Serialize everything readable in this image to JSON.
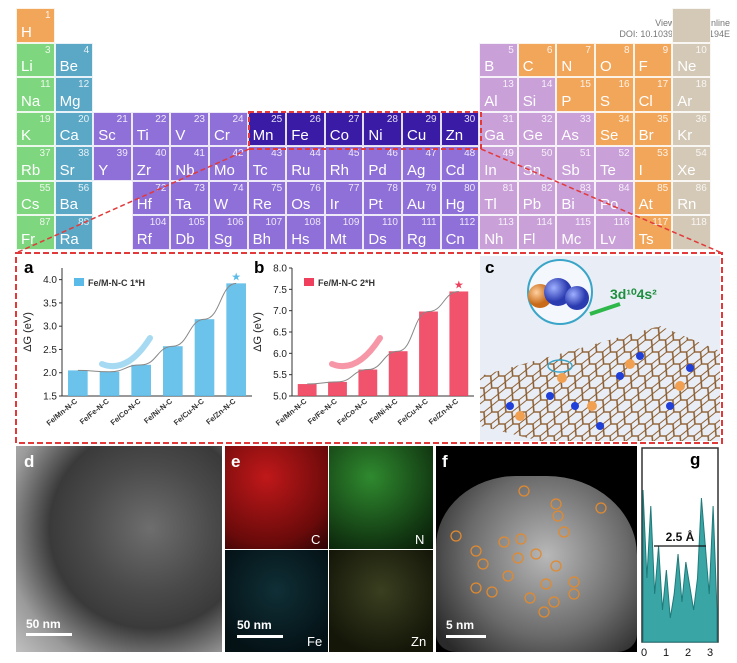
{
  "doi_block": {
    "line1": "View Article Online",
    "line2": "DOI: 10.1039/D1EE03194E"
  },
  "colors": {
    "alkali": "#7ed67e",
    "alkaline_earth": "#5aa7c6",
    "transition": "#8f6fd8",
    "transition_highlight": "#3a1ba6",
    "post_transition": "#c9a0d8",
    "metalloid_nonmetal": "#f2a65a",
    "noble": "#d4c8b6",
    "dashed": "#e23a3a",
    "chart_a": "#5bbbe8",
    "chart_b": "#ef3f5c",
    "teal": "#3aa5a5"
  },
  "periodic_table": {
    "elements": [
      {
        "n": "1",
        "s": "H",
        "r": 0,
        "c": 0,
        "g": "metalloid_nonmetal"
      },
      {
        "n": "",
        "s": "",
        "r": 0,
        "c": 17,
        "g": "noble"
      },
      {
        "n": "3",
        "s": "Li",
        "r": 1,
        "c": 0,
        "g": "alkali"
      },
      {
        "n": "4",
        "s": "Be",
        "r": 1,
        "c": 1,
        "g": "alkaline_earth"
      },
      {
        "n": "5",
        "s": "B",
        "r": 1,
        "c": 12,
        "g": "post_transition"
      },
      {
        "n": "6",
        "s": "C",
        "r": 1,
        "c": 13,
        "g": "metalloid_nonmetal"
      },
      {
        "n": "7",
        "s": "N",
        "r": 1,
        "c": 14,
        "g": "metalloid_nonmetal"
      },
      {
        "n": "8",
        "s": "O",
        "r": 1,
        "c": 15,
        "g": "metalloid_nonmetal"
      },
      {
        "n": "9",
        "s": "F",
        "r": 1,
        "c": 16,
        "g": "metalloid_nonmetal"
      },
      {
        "n": "10",
        "s": "Ne",
        "r": 1,
        "c": 17,
        "g": "noble"
      },
      {
        "n": "11",
        "s": "Na",
        "r": 2,
        "c": 0,
        "g": "alkali"
      },
      {
        "n": "12",
        "s": "Mg",
        "r": 2,
        "c": 1,
        "g": "alkaline_earth"
      },
      {
        "n": "13",
        "s": "Al",
        "r": 2,
        "c": 12,
        "g": "post_transition"
      },
      {
        "n": "14",
        "s": "Si",
        "r": 2,
        "c": 13,
        "g": "post_transition"
      },
      {
        "n": "15",
        "s": "P",
        "r": 2,
        "c": 14,
        "g": "metalloid_nonmetal"
      },
      {
        "n": "16",
        "s": "S",
        "r": 2,
        "c": 15,
        "g": "metalloid_nonmetal"
      },
      {
        "n": "17",
        "s": "Cl",
        "r": 2,
        "c": 16,
        "g": "metalloid_nonmetal"
      },
      {
        "n": "18",
        "s": "Ar",
        "r": 2,
        "c": 17,
        "g": "noble"
      },
      {
        "n": "19",
        "s": "K",
        "r": 3,
        "c": 0,
        "g": "alkali"
      },
      {
        "n": "20",
        "s": "Ca",
        "r": 3,
        "c": 1,
        "g": "alkaline_earth"
      },
      {
        "n": "21",
        "s": "Sc",
        "r": 3,
        "c": 2,
        "g": "transition"
      },
      {
        "n": "22",
        "s": "Ti",
        "r": 3,
        "c": 3,
        "g": "transition"
      },
      {
        "n": "23",
        "s": "V",
        "r": 3,
        "c": 4,
        "g": "transition"
      },
      {
        "n": "24",
        "s": "Cr",
        "r": 3,
        "c": 5,
        "g": "transition"
      },
      {
        "n": "25",
        "s": "Mn",
        "r": 3,
        "c": 6,
        "g": "transition_highlight"
      },
      {
        "n": "26",
        "s": "Fe",
        "r": 3,
        "c": 7,
        "g": "transition_highlight"
      },
      {
        "n": "27",
        "s": "Co",
        "r": 3,
        "c": 8,
        "g": "transition_highlight"
      },
      {
        "n": "28",
        "s": "Ni",
        "r": 3,
        "c": 9,
        "g": "transition_highlight"
      },
      {
        "n": "29",
        "s": "Cu",
        "r": 3,
        "c": 10,
        "g": "transition_highlight"
      },
      {
        "n": "30",
        "s": "Zn",
        "r": 3,
        "c": 11,
        "g": "transition_highlight"
      },
      {
        "n": "31",
        "s": "Ga",
        "r": 3,
        "c": 12,
        "g": "post_transition"
      },
      {
        "n": "32",
        "s": "Ge",
        "r": 3,
        "c": 13,
        "g": "post_transition"
      },
      {
        "n": "33",
        "s": "As",
        "r": 3,
        "c": 14,
        "g": "post_transition"
      },
      {
        "n": "34",
        "s": "Se",
        "r": 3,
        "c": 15,
        "g": "metalloid_nonmetal"
      },
      {
        "n": "35",
        "s": "Br",
        "r": 3,
        "c": 16,
        "g": "metalloid_nonmetal"
      },
      {
        "n": "36",
        "s": "Kr",
        "r": 3,
        "c": 17,
        "g": "noble"
      },
      {
        "n": "37",
        "s": "Rb",
        "r": 4,
        "c": 0,
        "g": "alkali"
      },
      {
        "n": "38",
        "s": "Sr",
        "r": 4,
        "c": 1,
        "g": "alkaline_earth"
      },
      {
        "n": "39",
        "s": "Y",
        "r": 4,
        "c": 2,
        "g": "transition"
      },
      {
        "n": "40",
        "s": "Zr",
        "r": 4,
        "c": 3,
        "g": "transition"
      },
      {
        "n": "41",
        "s": "Nb",
        "r": 4,
        "c": 4,
        "g": "transition"
      },
      {
        "n": "42",
        "s": "Mo",
        "r": 4,
        "c": 5,
        "g": "transition"
      },
      {
        "n": "43",
        "s": "Tc",
        "r": 4,
        "c": 6,
        "g": "transition"
      },
      {
        "n": "44",
        "s": "Ru",
        "r": 4,
        "c": 7,
        "g": "transition"
      },
      {
        "n": "45",
        "s": "Rh",
        "r": 4,
        "c": 8,
        "g": "transition"
      },
      {
        "n": "46",
        "s": "Pd",
        "r": 4,
        "c": 9,
        "g": "transition"
      },
      {
        "n": "47",
        "s": "Ag",
        "r": 4,
        "c": 10,
        "g": "transition"
      },
      {
        "n": "48",
        "s": "Cd",
        "r": 4,
        "c": 11,
        "g": "transition"
      },
      {
        "n": "49",
        "s": "In",
        "r": 4,
        "c": 12,
        "g": "post_transition"
      },
      {
        "n": "50",
        "s": "Sn",
        "r": 4,
        "c": 13,
        "g": "post_transition"
      },
      {
        "n": "51",
        "s": "Sb",
        "r": 4,
        "c": 14,
        "g": "post_transition"
      },
      {
        "n": "52",
        "s": "Te",
        "r": 4,
        "c": 15,
        "g": "post_transition"
      },
      {
        "n": "53",
        "s": "I",
        "r": 4,
        "c": 16,
        "g": "metalloid_nonmetal"
      },
      {
        "n": "54",
        "s": "Xe",
        "r": 4,
        "c": 17,
        "g": "noble"
      },
      {
        "n": "55",
        "s": "Cs",
        "r": 5,
        "c": 0,
        "g": "alkali"
      },
      {
        "n": "56",
        "s": "Ba",
        "r": 5,
        "c": 1,
        "g": "alkaline_earth"
      },
      {
        "n": "72",
        "s": "Hf",
        "r": 5,
        "c": 3,
        "g": "transition"
      },
      {
        "n": "73",
        "s": "Ta",
        "r": 5,
        "c": 4,
        "g": "transition"
      },
      {
        "n": "74",
        "s": "W",
        "r": 5,
        "c": 5,
        "g": "transition"
      },
      {
        "n": "75",
        "s": "Re",
        "r": 5,
        "c": 6,
        "g": "transition"
      },
      {
        "n": "76",
        "s": "Os",
        "r": 5,
        "c": 7,
        "g": "transition"
      },
      {
        "n": "77",
        "s": "Ir",
        "r": 5,
        "c": 8,
        "g": "transition"
      },
      {
        "n": "78",
        "s": "Pt",
        "r": 5,
        "c": 9,
        "g": "transition"
      },
      {
        "n": "79",
        "s": "Au",
        "r": 5,
        "c": 10,
        "g": "transition"
      },
      {
        "n": "80",
        "s": "Hg",
        "r": 5,
        "c": 11,
        "g": "transition"
      },
      {
        "n": "81",
        "s": "Tl",
        "r": 5,
        "c": 12,
        "g": "post_transition"
      },
      {
        "n": "82",
        "s": "Pb",
        "r": 5,
        "c": 13,
        "g": "post_transition"
      },
      {
        "n": "83",
        "s": "Bi",
        "r": 5,
        "c": 14,
        "g": "post_transition"
      },
      {
        "n": "84",
        "s": "Po",
        "r": 5,
        "c": 15,
        "g": "post_transition"
      },
      {
        "n": "85",
        "s": "At",
        "r": 5,
        "c": 16,
        "g": "metalloid_nonmetal"
      },
      {
        "n": "86",
        "s": "Rn",
        "r": 5,
        "c": 17,
        "g": "noble"
      },
      {
        "n": "87",
        "s": "Fr",
        "r": 6,
        "c": 0,
        "g": "alkali"
      },
      {
        "n": "88",
        "s": "Ra",
        "r": 6,
        "c": 1,
        "g": "alkaline_earth"
      },
      {
        "n": "104",
        "s": "Rf",
        "r": 6,
        "c": 3,
        "g": "transition"
      },
      {
        "n": "105",
        "s": "Db",
        "r": 6,
        "c": 4,
        "g": "transition"
      },
      {
        "n": "106",
        "s": "Sg",
        "r": 6,
        "c": 5,
        "g": "transition"
      },
      {
        "n": "107",
        "s": "Bh",
        "r": 6,
        "c": 6,
        "g": "transition"
      },
      {
        "n": "108",
        "s": "Hs",
        "r": 6,
        "c": 7,
        "g": "transition"
      },
      {
        "n": "109",
        "s": "Mt",
        "r": 6,
        "c": 8,
        "g": "transition"
      },
      {
        "n": "110",
        "s": "Ds",
        "r": 6,
        "c": 9,
        "g": "transition"
      },
      {
        "n": "111",
        "s": "Rg",
        "r": 6,
        "c": 10,
        "g": "transition"
      },
      {
        "n": "112",
        "s": "Cn",
        "r": 6,
        "c": 11,
        "g": "transition"
      },
      {
        "n": "113",
        "s": "Nh",
        "r": 6,
        "c": 12,
        "g": "post_transition"
      },
      {
        "n": "114",
        "s": "Fl",
        "r": 6,
        "c": 13,
        "g": "post_transition"
      },
      {
        "n": "115",
        "s": "Mc",
        "r": 6,
        "c": 14,
        "g": "post_transition"
      },
      {
        "n": "116",
        "s": "Lv",
        "r": 6,
        "c": 15,
        "g": "post_transition"
      },
      {
        "n": "117",
        "s": "Ts",
        "r": 6,
        "c": 16,
        "g": "metalloid_nonmetal"
      },
      {
        "n": "118",
        "s": "",
        "r": 6,
        "c": 17,
        "g": "noble"
      }
    ]
  },
  "panel_labels": {
    "a": "a",
    "b": "b",
    "c": "c",
    "d": "d",
    "e": "e",
    "f": "f",
    "g": "g"
  },
  "chart_data": [
    {
      "type": "bar",
      "panel": "a",
      "legend": "Fe/M-N-C 1*H",
      "categories": [
        "Fe/Mn-N-C",
        "Fe/Fe-N-C",
        "Fe/Co-N-C",
        "Fe/Ni-N-C",
        "Fe/Cu-N-C",
        "Fe/Zn-N-C"
      ],
      "values": [
        2.05,
        2.02,
        2.17,
        2.57,
        3.15,
        3.92
      ],
      "ylabel": "ΔG (eV)",
      "ylim": [
        1.5,
        4.25
      ],
      "yticks": [
        "1.5",
        "2.0",
        "2.5",
        "3.0",
        "3.5",
        "4.0"
      ],
      "yticks_values": [
        1.5,
        2.0,
        2.5,
        3.0,
        3.5,
        4.0
      ],
      "marker": "★",
      "color": "#5bbbe8"
    },
    {
      "type": "bar",
      "panel": "b",
      "legend": "Fe/M-N-C 2*H",
      "categories": [
        "Fe/Mn-N-C",
        "Fe/Fe-N-C",
        "Fe/Co-N-C",
        "Fe/Ni-N-C",
        "Fe/Cu-N-C",
        "Fe/Zn-N-C"
      ],
      "values": [
        5.28,
        5.33,
        5.62,
        6.05,
        6.98,
        7.45
      ],
      "ylabel": "ΔG (eV)",
      "ylim": [
        5.0,
        8.0
      ],
      "yticks": [
        "5.0",
        "5.5",
        "6.0",
        "6.5",
        "7.0",
        "7.5",
        "8.0"
      ],
      "yticks_values": [
        5.0,
        5.5,
        6.0,
        6.5,
        7.0,
        7.5,
        8.0
      ],
      "marker": "★",
      "color": "#ef3f5c"
    },
    {
      "type": "line",
      "panel": "g",
      "xlabel_ticks": [
        "0",
        "1",
        "2",
        "3"
      ],
      "annotation": "2.5 Å",
      "color": "#3aa5a5"
    }
  ],
  "panel_c": {
    "label": "3d¹⁰4s²"
  },
  "panel_d": {
    "scalebar": "50 nm"
  },
  "panel_e": {
    "scalebar": "50 nm",
    "channels": [
      "C",
      "N",
      "Fe",
      "Zn"
    ]
  },
  "panel_f": {
    "scalebar": "5 nm"
  }
}
